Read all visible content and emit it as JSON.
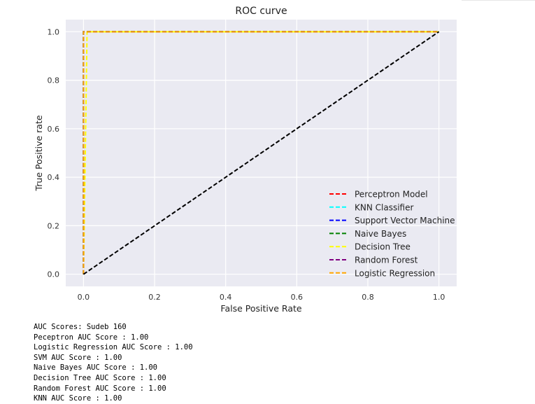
{
  "chart_data": {
    "type": "line",
    "title": "ROC curve",
    "xlabel": "False Positive Rate",
    "ylabel": "True Positive rate",
    "xlim": [
      -0.05,
      1.05
    ],
    "ylim": [
      -0.05,
      1.05
    ],
    "xticks": [
      "0.0",
      "0.2",
      "0.4",
      "0.6",
      "0.8",
      "1.0"
    ],
    "yticks": [
      "0.0",
      "0.2",
      "0.4",
      "0.6",
      "0.8",
      "1.0"
    ],
    "grid": true,
    "legend_position": "lower-right",
    "series": [
      {
        "name": "Perceptron Model",
        "color": "#ff0000",
        "x": [
          0,
          0,
          1
        ],
        "y": [
          0,
          1,
          1
        ]
      },
      {
        "name": "KNN Classifier",
        "color": "#00ffff",
        "x": [
          0,
          0,
          1
        ],
        "y": [
          0,
          1,
          1
        ]
      },
      {
        "name": "Support Vector Machine",
        "color": "#0000ff",
        "x": [
          0,
          0,
          1
        ],
        "y": [
          0,
          1,
          1
        ]
      },
      {
        "name": "Naive Bayes",
        "color": "#008000",
        "x": [
          0,
          0,
          1
        ],
        "y": [
          0,
          1,
          1
        ]
      },
      {
        "name": "Decision Tree",
        "color": "#ffff00",
        "x": [
          0,
          0.01,
          1
        ],
        "y": [
          0,
          1,
          1
        ]
      },
      {
        "name": "Random Forest",
        "color": "#800080",
        "x": [
          0,
          0,
          1
        ],
        "y": [
          0,
          1,
          1
        ]
      },
      {
        "name": "Logistic Regression",
        "color": "#ffa500",
        "x": [
          0,
          0,
          1
        ],
        "y": [
          0,
          1,
          1
        ]
      }
    ],
    "reference_line": {
      "color": "#000000",
      "x": [
        0,
        1
      ],
      "y": [
        0,
        1
      ]
    }
  },
  "output_lines": [
    "AUC Scores: Sudeb 160",
    "Peceptron AUC Score : 1.00",
    "Logistic Regression AUC Score : 1.00",
    "SVM AUC Score : 1.00",
    "Naive Bayes AUC Score : 1.00",
    "Decision Tree AUC Score : 1.00",
    "Random Forest AUC Score : 1.00",
    "KNN AUC Score : 1.00"
  ]
}
